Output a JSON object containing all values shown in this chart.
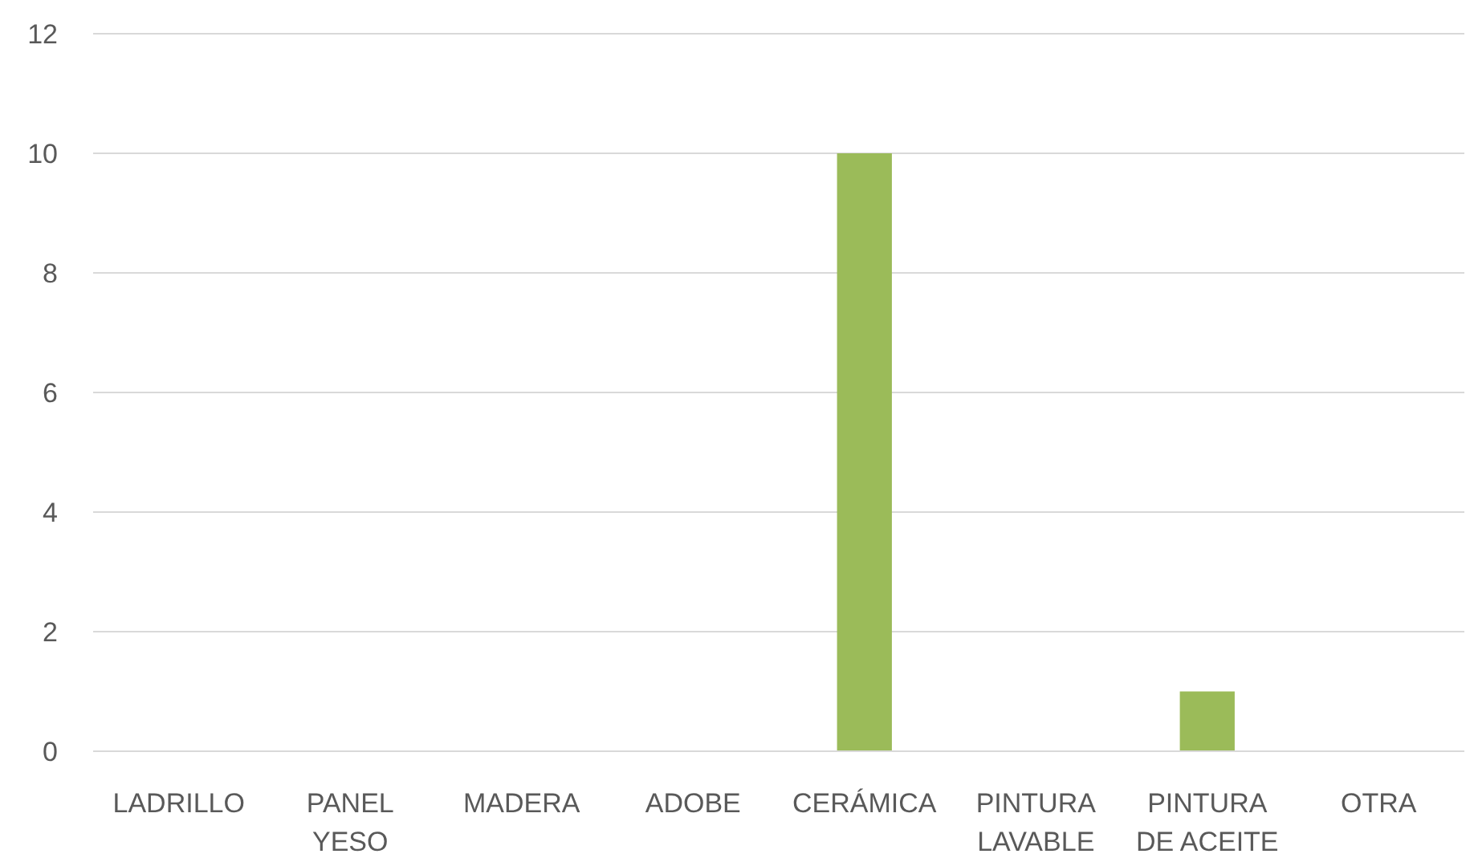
{
  "chart_data": {
    "type": "bar",
    "categories": [
      "LADRILLO",
      "PANEL YESO",
      "MADERA",
      "ADOBE",
      "CERÁMICA",
      "PINTURA LAVABLE",
      "PINTURA DE ACEITE",
      "OTRA"
    ],
    "values": [
      0,
      0,
      0,
      0,
      10,
      0,
      1,
      0
    ],
    "color": "#9bbb59",
    "ylim": [
      0,
      12
    ],
    "yticks": [
      0,
      2,
      4,
      6,
      8,
      10,
      12
    ],
    "grid": "y"
  }
}
